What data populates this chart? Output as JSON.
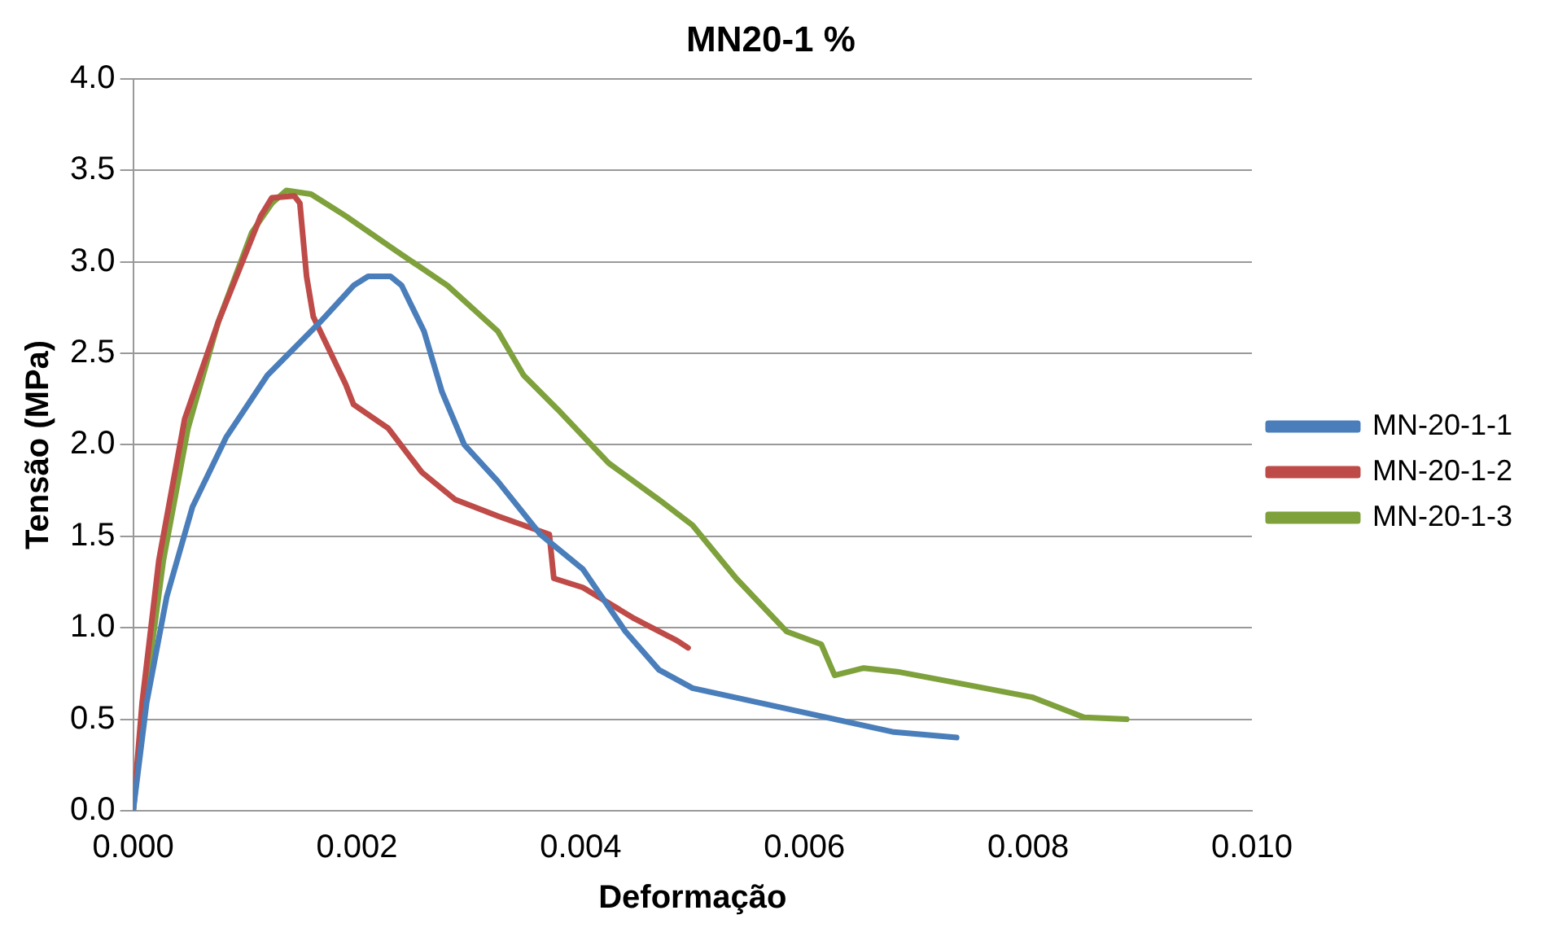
{
  "chart_data": {
    "type": "line",
    "title": "MN20-1 %",
    "xlabel": "Deformação",
    "ylabel": "Tensão (MPa)",
    "xlim": [
      0,
      0.01
    ],
    "xticks": [
      {
        "value": 0,
        "label": "0.000"
      },
      {
        "value": 0.002,
        "label": "0.002"
      },
      {
        "value": 0.004,
        "label": "0.004"
      },
      {
        "value": 0.006,
        "label": "0.006"
      },
      {
        "value": 0.008,
        "label": "0.008"
      },
      {
        "value": 0.01,
        "label": "0.010"
      }
    ],
    "ylim": [
      0,
      4
    ],
    "yticks": [
      {
        "value": 0,
        "label": "0.0"
      },
      {
        "value": 0.5,
        "label": "0.5"
      },
      {
        "value": 1,
        "label": "1.0"
      },
      {
        "value": 1.5,
        "label": "1.5"
      },
      {
        "value": 2,
        "label": "2.0"
      },
      {
        "value": 2.5,
        "label": "2.5"
      },
      {
        "value": 3,
        "label": "3.0"
      },
      {
        "value": 3.5,
        "label": "3.5"
      },
      {
        "value": 4,
        "label": "4.0"
      }
    ],
    "grid": "y",
    "legend": "right",
    "marker": "none",
    "line_style": "solid",
    "series": [
      {
        "name": "MN-20-1-1",
        "color": "#4a7ebb",
        "x": [
          0,
          0.00012,
          0.0003,
          0.00053,
          0.00083,
          0.0012,
          0.00167,
          0.00197,
          0.0021,
          0.0023,
          0.0024,
          0.0026,
          0.00276,
          0.00296,
          0.00326,
          0.00364,
          0.00402,
          0.0044,
          0.0047,
          0.005,
          0.0056,
          0.0062,
          0.0068,
          0.00736
        ],
        "values": [
          0,
          0.59,
          1.17,
          1.66,
          2.04,
          2.38,
          2.67,
          2.87,
          2.92,
          2.92,
          2.87,
          2.62,
          2.29,
          2.0,
          1.8,
          1.51,
          1.32,
          0.98,
          0.77,
          0.67,
          0.59,
          0.51,
          0.43,
          0.4
        ]
      },
      {
        "name": "MN-20-1-2",
        "color": "#be4b48",
        "x": [
          0,
          8e-05,
          0.00023,
          0.00046,
          0.00076,
          0.00114,
          0.00124,
          0.00144,
          0.00149,
          0.00155,
          0.00161,
          0.0019,
          0.00197,
          0.00228,
          0.00258,
          0.00288,
          0.00326,
          0.00372,
          0.00376,
          0.00402,
          0.00448,
          0.00486,
          0.00496
        ],
        "values": [
          0,
          0.59,
          1.37,
          2.14,
          2.67,
          3.25,
          3.35,
          3.36,
          3.32,
          2.92,
          2.7,
          2.33,
          2.22,
          2.09,
          1.85,
          1.7,
          1.61,
          1.51,
          1.27,
          1.22,
          1.05,
          0.93,
          0.89
        ]
      },
      {
        "name": "MN-20-1-3",
        "color": "#7ea13c",
        "x": [
          0,
          0.0001,
          0.00027,
          0.00049,
          0.00076,
          0.00106,
          0.00124,
          0.00137,
          0.00159,
          0.0019,
          0.00235,
          0.00281,
          0.00326,
          0.00349,
          0.0038,
          0.00425,
          0.0047,
          0.005,
          0.00539,
          0.00584,
          0.00615,
          0.00627,
          0.00653,
          0.00683,
          0.00744,
          0.00804,
          0.0085,
          0.00888
        ],
        "values": [
          0,
          0.59,
          1.37,
          2.09,
          2.67,
          3.16,
          3.32,
          3.39,
          3.37,
          3.25,
          3.06,
          2.87,
          2.62,
          2.38,
          2.19,
          1.9,
          1.7,
          1.56,
          1.27,
          0.98,
          0.91,
          0.74,
          0.78,
          0.76,
          0.69,
          0.62,
          0.51,
          0.5
        ]
      }
    ]
  }
}
